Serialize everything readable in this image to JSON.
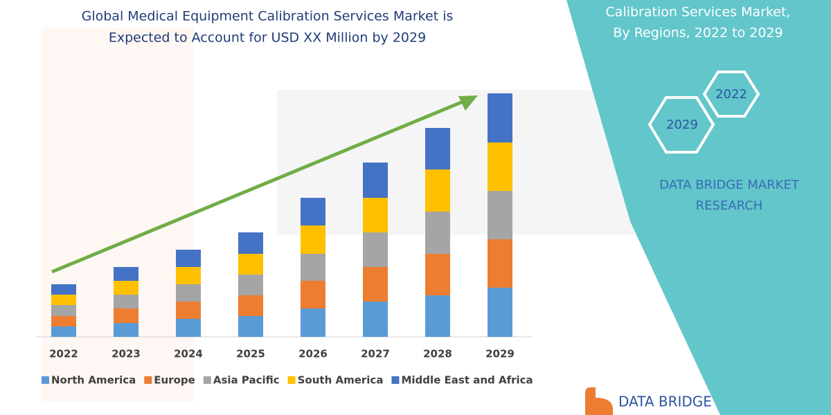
{
  "chart_data": {
    "type": "stacked-bar",
    "title": [
      "Global Medical Equipment Calibration Services Market is",
      "Expected to Account for USD XX Million by 2029"
    ],
    "categories": [
      "2022",
      "2023",
      "2024",
      "2025",
      "2026",
      "2027",
      "2028",
      "2029"
    ],
    "series": [
      {
        "name": "North America",
        "color": "#5b9bd5",
        "values": [
          15,
          20,
          26,
          30,
          41,
          51,
          60,
          71
        ]
      },
      {
        "name": "Europe",
        "color": "#ed7d31",
        "values": [
          15,
          21,
          25,
          30,
          40,
          50,
          60,
          70
        ]
      },
      {
        "name": "Asia Pacific",
        "color": "#a5a5a5",
        "values": [
          16,
          20,
          25,
          30,
          39,
          50,
          61,
          70
        ]
      },
      {
        "name": "South America",
        "color": "#ffc000",
        "values": [
          15,
          20,
          25,
          30,
          41,
          50,
          61,
          70
        ]
      },
      {
        "name": "Middle East and Africa",
        "color": "#4472c4",
        "values": [
          15,
          20,
          25,
          31,
          40,
          51,
          60,
          71
        ]
      }
    ]
  },
  "side_panel": {
    "heading": [
      "Calibration Services Market,",
      "By Regions, 2022 to 2029"
    ],
    "hexagons": [
      "2022",
      "2029"
    ],
    "brand": [
      "DATA BRIDGE MARKET",
      "RESEARCH"
    ],
    "logo": "DATA BRIDGE"
  }
}
